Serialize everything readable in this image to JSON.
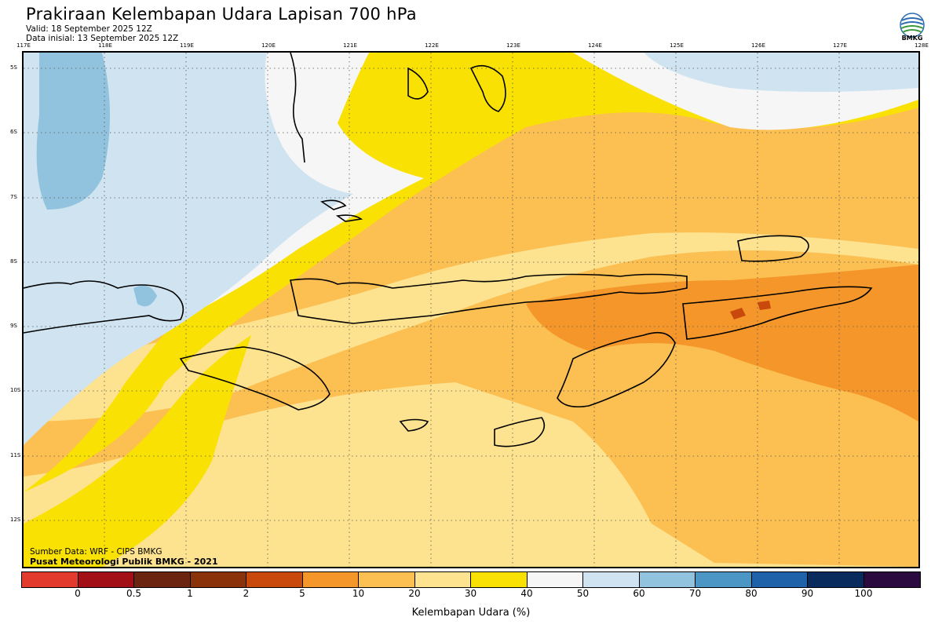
{
  "header": {
    "title": "Prakiraan Kelembapan Udara Lapisan 700 hPa",
    "valid": "Valid: 18 September 2025 12Z",
    "initial": "Data inisial: 13 September 2025 12Z"
  },
  "logo": {
    "icon": "bmkg-logo",
    "label": "BMKG"
  },
  "map": {
    "lon_ticks": [
      "117E",
      "118E",
      "119E",
      "120E",
      "121E",
      "122E",
      "123E",
      "124E",
      "125E",
      "126E",
      "127E",
      "128E"
    ],
    "lat_ticks": [
      "5S",
      "6S",
      "7S",
      "8S",
      "9S",
      "10S",
      "11S",
      "12S"
    ],
    "source": "Sumber Data: WRF - CIPS BMKG",
    "publisher": "Pusat Meteorologi Publik BMKG - 2021"
  },
  "colorbar": {
    "title": "Kelembapan Udara (%)",
    "labels": [
      "0",
      "0.5",
      "1",
      "2",
      "5",
      "10",
      "20",
      "30",
      "40",
      "50",
      "60",
      "70",
      "80",
      "90",
      "100"
    ],
    "colors": [
      "#e23b2e",
      "#a30f16",
      "#6b2410",
      "#8a3209",
      "#c9490c",
      "#f5962a",
      "#fbbf52",
      "#fde28f",
      "#f9e104",
      "#f6f6f6",
      "#cfe3f0",
      "#92c3de",
      "#4b96c5",
      "#1f62aa",
      "#082a5c",
      "#2b0a3f"
    ]
  }
}
